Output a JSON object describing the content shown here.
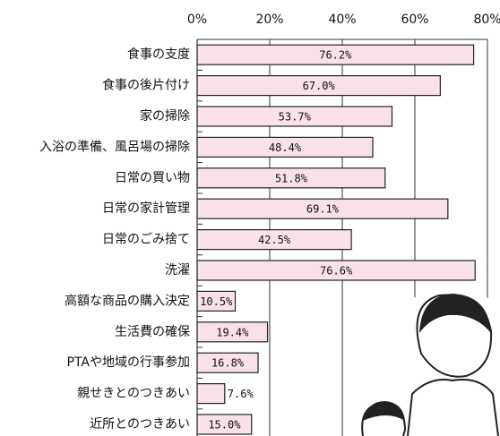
{
  "chart_data": {
    "type": "bar",
    "orientation": "horizontal",
    "categories": [
      "食事の支度",
      "食事の後片付け",
      "家の掃除",
      "入浴の準備、風呂場の掃除",
      "日常の買い物",
      "日常の家計管理",
      "日常のごみ捨て",
      "洗濯",
      "高額な商品の購入決定",
      "生活費の確保",
      "PTAや地域の行事参加",
      "親せきとのつきあい",
      "近所とのつきあい"
    ],
    "values": [
      76.2,
      67.0,
      53.7,
      48.4,
      51.8,
      69.1,
      42.5,
      76.6,
      10.5,
      19.4,
      16.8,
      7.6,
      15.0
    ],
    "value_labels": [
      "76.2%",
      "67.0%",
      "53.7%",
      "48.4%",
      "51.8%",
      "69.1%",
      "42.5%",
      "76.6%",
      "10.5%",
      "19.4%",
      "16.8%",
      "7.6%",
      "15.0%"
    ],
    "color": "#f8e2e7",
    "xlim": [
      0,
      80
    ],
    "xticks": [
      {
        "value": 0,
        "label": "0%"
      },
      {
        "value": 20,
        "label": "20%"
      },
      {
        "value": 40,
        "label": "40%"
      },
      {
        "value": 60,
        "label": "60%"
      },
      {
        "value": 80,
        "label": "80%"
      }
    ],
    "grid": true
  }
}
